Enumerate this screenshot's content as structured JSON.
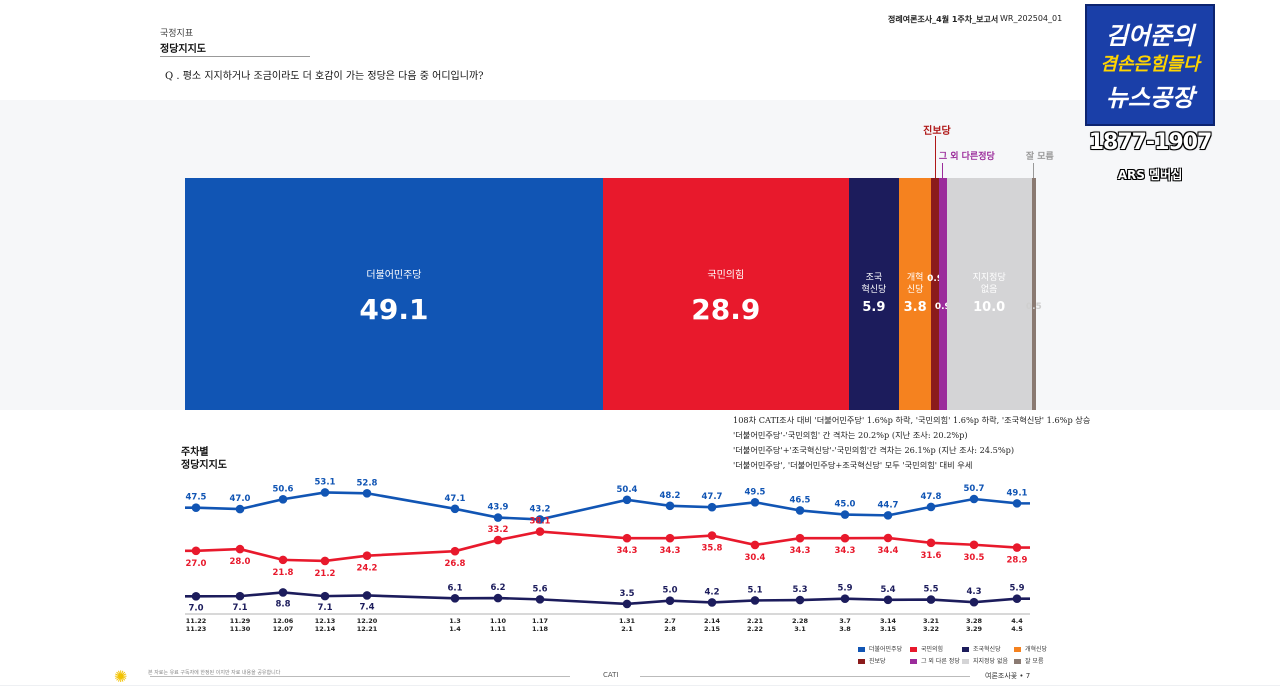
{
  "header": {
    "section_small": "국정지표",
    "section_title": "정당지지도",
    "report_name": "정례여론조사_4월 1주차_보고서",
    "report_code": "WR_202504_01",
    "question": "Q . 평소 지지하거나 조금이라도 더 호감이 가는 정당은 다음 중 어디입니까?"
  },
  "broadcast": {
    "line1": "김어준의",
    "line2": "겸손은힘들다",
    "line3": "뉴스공장",
    "phone": "1877-1907",
    "ars": "ARS 멤버십"
  },
  "notes": [
    "108차 CATI조사 대비 '더불어민주당' 1.6%p 하락, '국민의힘' 1.6%p 하락, '조국혁신당' 1.6%p 상승",
    "'더불어민주당'-'국민의힘' 간 격차는 20.2%p (지난 조사: 20.2%p)",
    "'더불어민주당'+'조국혁신당'-'국민의힘'간 격차는 26.1%p (지난 조사: 24.5%p)",
    "'더불어민주당', '더불어민주당+조국혁신당' 모두 '국민의힘' 대비 우세"
  ],
  "footer": {
    "left_note": "본 자료는 유료 구독자에 한정된 이지만 자료 내용을 공유합니다",
    "center": "CATI",
    "right": "여론조사꽃 • 7"
  },
  "colors": {
    "minju": "#1155b4",
    "ppp": "#e8192c",
    "jokuk": "#1c1c5c",
    "gaehyuk": "#f5821f",
    "jinbo": "#8b1b1b",
    "other": "#9b2c9b",
    "none": "#d4d4d6",
    "dk": "#8a7a72"
  },
  "chart_data": [
    {
      "type": "bar",
      "subtype": "stacked-100",
      "categories": [
        "더불어민주당",
        "국민의힘",
        "조국혁신당",
        "개혁신당",
        "진보당",
        "그 외 다른정당",
        "지지정당 없음",
        "잘 모름"
      ],
      "display_labels": [
        "더불어민주당",
        "국민의힘",
        "조국\n혁신당",
        "개혁\n신당",
        "",
        "",
        "지지정당\n없음",
        ""
      ],
      "callouts": [
        "",
        "",
        "",
        "",
        "진보당",
        "그 외 다른정당",
        "",
        "잘 모름"
      ],
      "values": [
        49.1,
        28.9,
        5.9,
        3.8,
        0.9,
        0.9,
        10.0,
        0.5
      ],
      "value_labels": [
        "49.1",
        "28.9",
        "5.9",
        "3.8",
        "0.9",
        "0.9",
        "10.0",
        "0.5"
      ]
    },
    {
      "type": "line",
      "title": "주차별\n정당지지도",
      "x": [
        "11.22\n11.23",
        "11.29\n11.30",
        "12.06\n12.07",
        "12.13\n12.14",
        "12.20\n12.21",
        "1.3\n1.4",
        "1.10\n1.11",
        "1.17\n1.18",
        "1.31\n2.1",
        "2.7\n2.8",
        "2.14\n2.15",
        "2.21\n2.22",
        "2.28\n3.1",
        "3.7\n3.8",
        "3.14\n3.15",
        "3.21\n3.22",
        "3.28\n3.29",
        "4.4\n4.5"
      ],
      "series": [
        {
          "name": "더불어민주당",
          "values": [
            47.5,
            47.0,
            50.6,
            53.1,
            52.8,
            47.1,
            43.9,
            43.2,
            50.4,
            48.2,
            47.7,
            49.5,
            46.5,
            45.0,
            44.7,
            47.8,
            50.7,
            49.1
          ]
        },
        {
          "name": "국민의힘",
          "values": [
            27.0,
            28.0,
            21.8,
            21.2,
            24.2,
            26.8,
            33.2,
            38.1,
            34.3,
            34.3,
            35.8,
            30.4,
            34.3,
            34.3,
            34.4,
            31.6,
            30.5,
            28.9
          ]
        },
        {
          "name": "조국혁신당",
          "values": [
            7.0,
            7.1,
            8.8,
            7.1,
            7.4,
            6.1,
            6.2,
            5.6,
            3.5,
            5.0,
            4.2,
            5.1,
            5.3,
            5.9,
            5.4,
            5.5,
            4.3,
            5.9
          ]
        }
      ],
      "legend": [
        "더불어민주당",
        "국민의힘",
        "조국혁신당",
        "개혁신당",
        "진보당",
        "그 외 다른 정당",
        "지지정당 없음",
        "잘 모름"
      ]
    }
  ]
}
